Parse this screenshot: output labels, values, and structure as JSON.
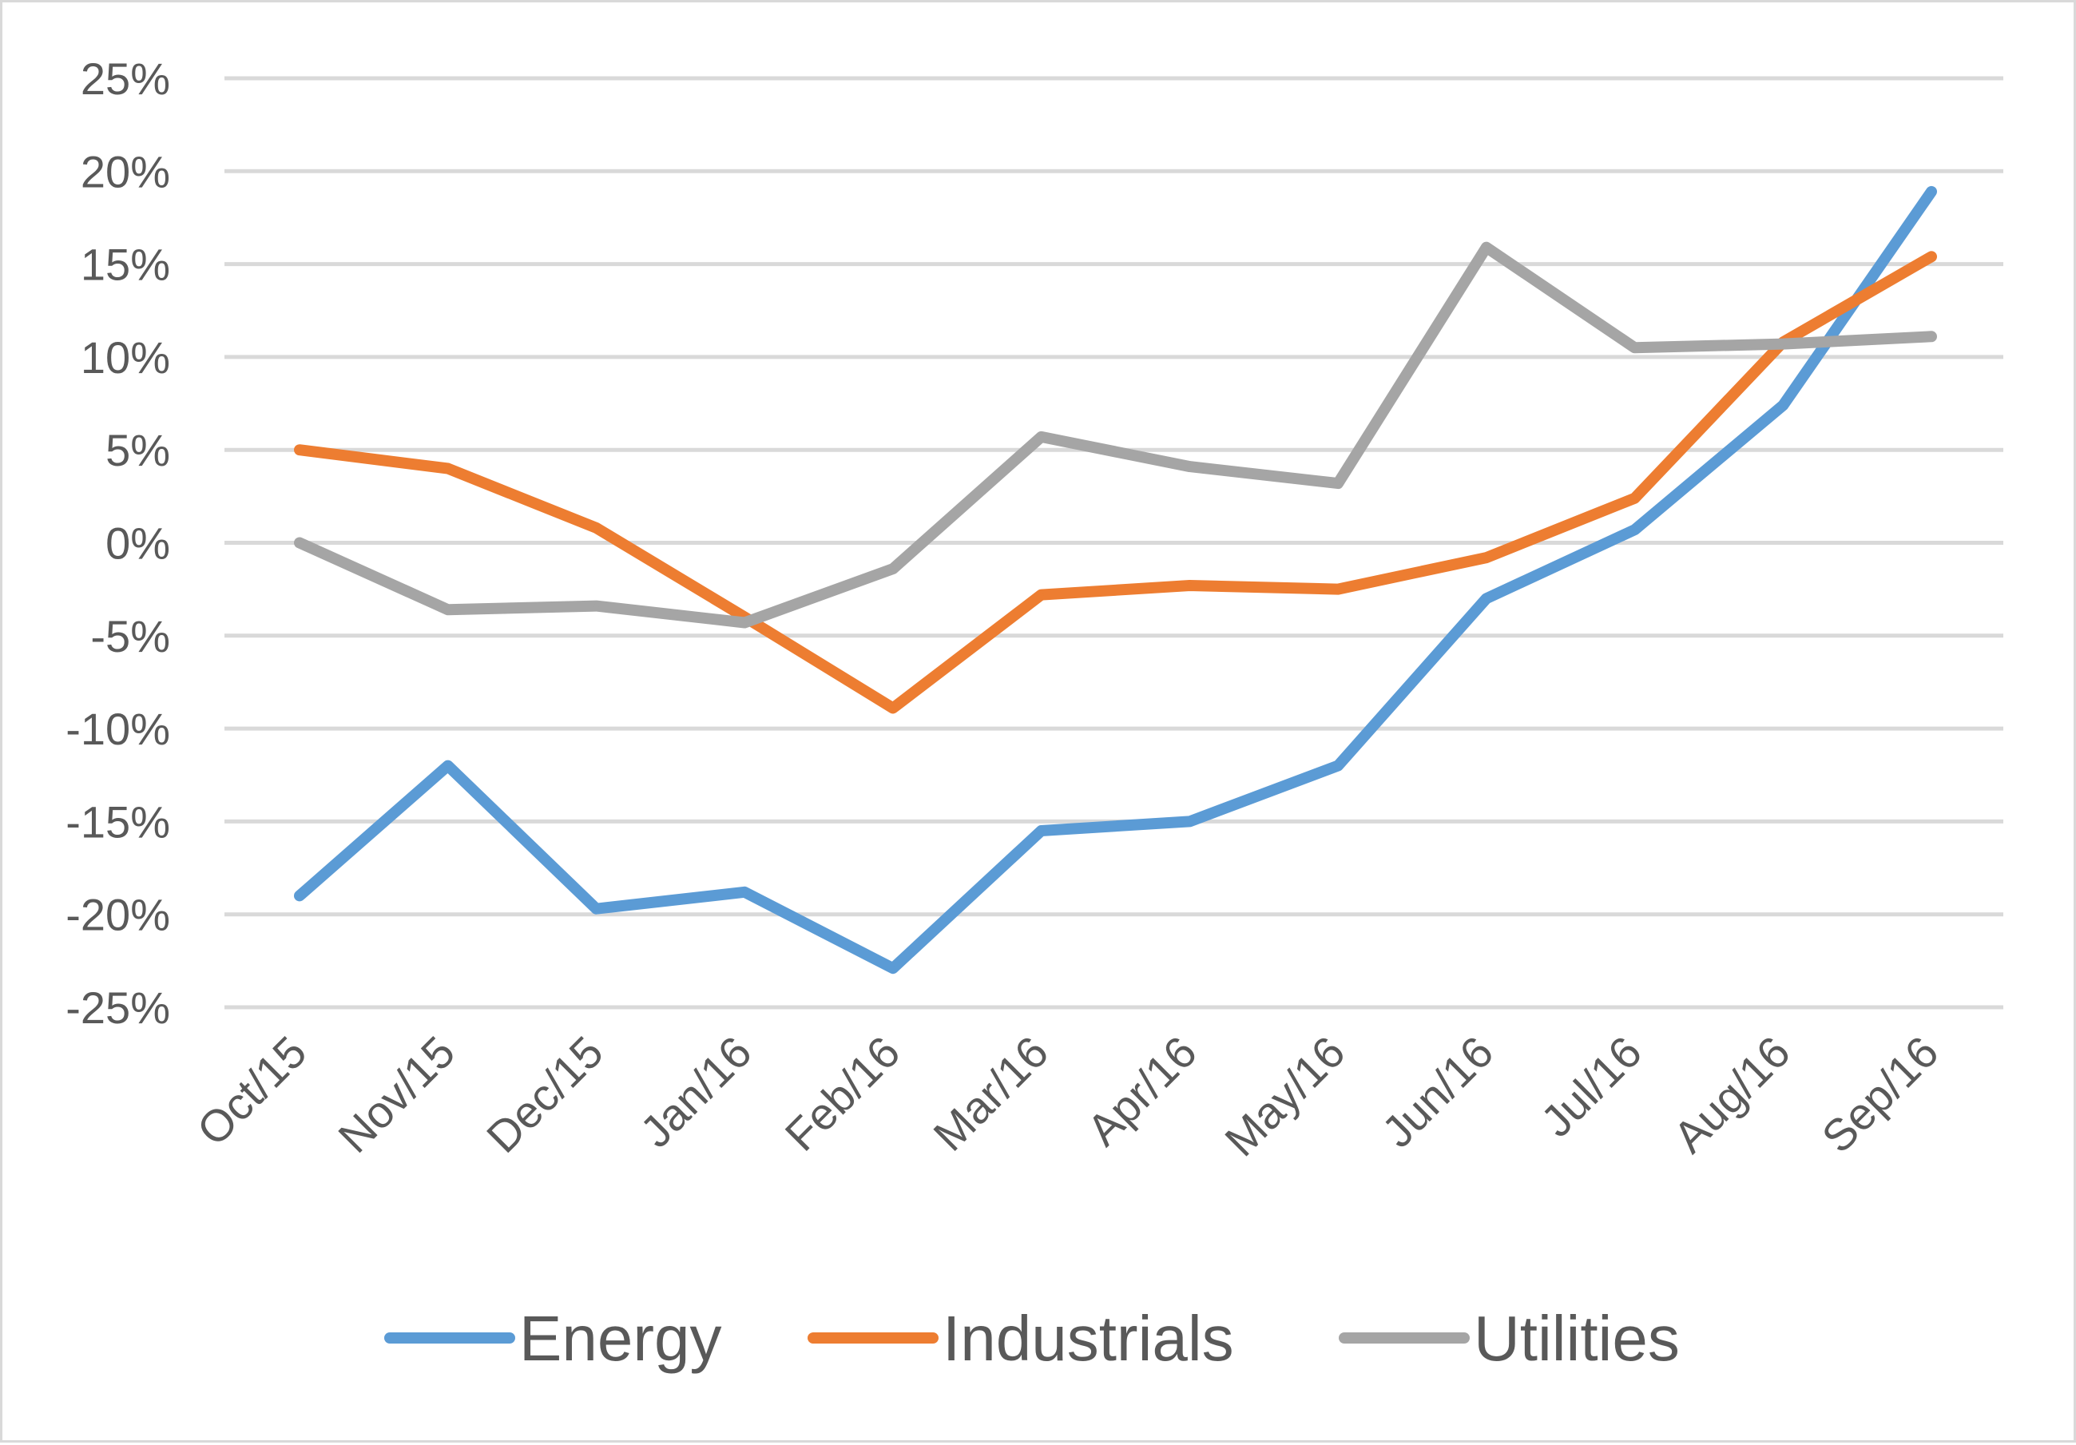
{
  "chart_data": {
    "type": "line",
    "title": "",
    "xlabel": "",
    "ylabel": "",
    "categories": [
      "Oct/15",
      "Nov/15",
      "Dec/15",
      "Jan/16",
      "Feb/16",
      "Mar/16",
      "Apr/16",
      "May/16",
      "Jun/16",
      "Jul/16",
      "Aug/16",
      "Sep/16"
    ],
    "ylim": [
      -25,
      25
    ],
    "yticks": [
      25,
      20,
      15,
      10,
      5,
      0,
      -5,
      -10,
      -15,
      -20,
      -25
    ],
    "ytick_labels": [
      "25%",
      "20%",
      "15%",
      "10%",
      "5%",
      "0%",
      "-5%",
      "-10%",
      "-15%",
      "-20%",
      "-25%"
    ],
    "grid": true,
    "legend_position": "bottom",
    "series": [
      {
        "name": "Energy",
        "color": "#5b9bd5",
        "values": [
          -19.0,
          -12.0,
          -19.7,
          -18.8,
          -22.9,
          -15.5,
          -15.0,
          -12.0,
          -3.0,
          0.7,
          7.4,
          18.9
        ]
      },
      {
        "name": "Industrials",
        "color": "#ed7d31",
        "values": [
          5.0,
          4.0,
          0.8,
          -4.0,
          -8.9,
          -2.8,
          -2.3,
          -2.5,
          -0.8,
          2.4,
          10.8,
          15.4
        ]
      },
      {
        "name": "Utilities",
        "color": "#a5a5a5",
        "values": [
          0.0,
          -3.6,
          -3.4,
          -4.3,
          -1.4,
          5.7,
          4.1,
          3.2,
          15.9,
          10.5,
          10.7,
          11.1
        ]
      }
    ]
  }
}
